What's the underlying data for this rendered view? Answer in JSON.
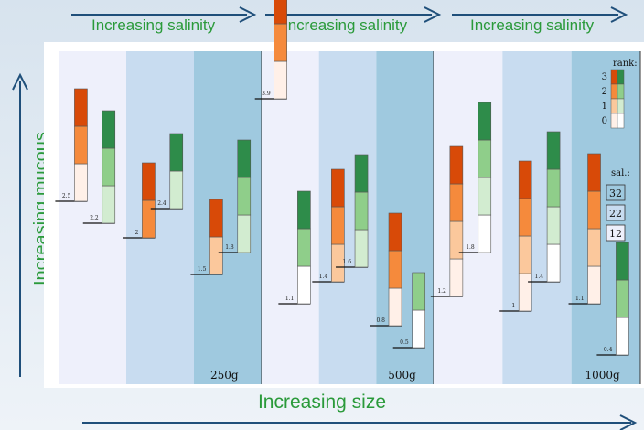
{
  "labels": {
    "salinity": [
      "Increasing salinity",
      "Increasing salinity",
      "Increasing salinity"
    ],
    "mucous": "Increasing mucous",
    "size": "Increasing size"
  },
  "colors": {
    "text_green": "#2a9a3a",
    "arrow": "#1f4f7a",
    "bands": [
      "#eef0fb",
      "#c8dcf0",
      "#9fc9df"
    ],
    "orange": [
      "#fff0e8",
      "#fbc89c",
      "#f58a3c",
      "#d84a08"
    ],
    "green": [
      "#ffffff",
      "#d2ecd0",
      "#8fce8a",
      "#2e8c4a"
    ]
  },
  "rank_legend": {
    "title": "rank:",
    "levels": [
      "3",
      "2",
      "1",
      "0"
    ]
  },
  "sal_legend": {
    "title": "sal.:",
    "levels": [
      "32",
      "22",
      "12"
    ]
  },
  "chart_data": {
    "type": "bar",
    "groups": [
      {
        "size": "250g",
        "bars": [
          {
            "base": 2.5,
            "fam": "orange",
            "segs": [
              0,
              2,
              3
            ]
          },
          {
            "base": 2.2,
            "fam": "green",
            "segs": [
              1,
              2,
              3
            ]
          },
          {
            "base": 2,
            "fam": "orange",
            "segs": [
              2,
              3
            ]
          },
          {
            "base": 2.4,
            "fam": "green",
            "segs": [
              1,
              3
            ]
          },
          {
            "base": 1.5,
            "fam": "orange",
            "segs": [
              1,
              3
            ]
          },
          {
            "base": 1.8,
            "fam": "green",
            "segs": [
              1,
              2,
              3
            ]
          }
        ]
      },
      {
        "size": "500g",
        "bars": [
          {
            "base": 3.9,
            "fam": "orange",
            "segs": [
              0,
              2,
              3
            ]
          },
          {
            "base": 1.1,
            "fam": "green",
            "segs": [
              0,
              2,
              3
            ]
          },
          {
            "base": 1.4,
            "fam": "orange",
            "segs": [
              1,
              2,
              3
            ]
          },
          {
            "base": 1.6,
            "fam": "green",
            "segs": [
              1,
              2,
              3
            ]
          },
          {
            "base": 0.8,
            "fam": "orange",
            "segs": [
              0,
              2,
              3
            ]
          },
          {
            "base": 0.5,
            "fam": "green",
            "segs": [
              0,
              2
            ]
          }
        ]
      },
      {
        "size": "1000g",
        "bars": [
          {
            "base": 1.2,
            "fam": "orange",
            "segs": [
              0,
              1,
              2,
              3
            ]
          },
          {
            "base": 1.8,
            "fam": "green",
            "segs": [
              0,
              1,
              2,
              3
            ]
          },
          {
            "base": 1,
            "fam": "orange",
            "segs": [
              0,
              1,
              2,
              3
            ]
          },
          {
            "base": 1.4,
            "fam": "green",
            "segs": [
              0,
              1,
              2,
              3
            ]
          },
          {
            "base": 1.1,
            "fam": "orange",
            "segs": [
              0,
              1,
              2,
              3
            ]
          },
          {
            "base": 0.4,
            "fam": "green",
            "segs": [
              0,
              2,
              3
            ]
          }
        ]
      }
    ]
  }
}
